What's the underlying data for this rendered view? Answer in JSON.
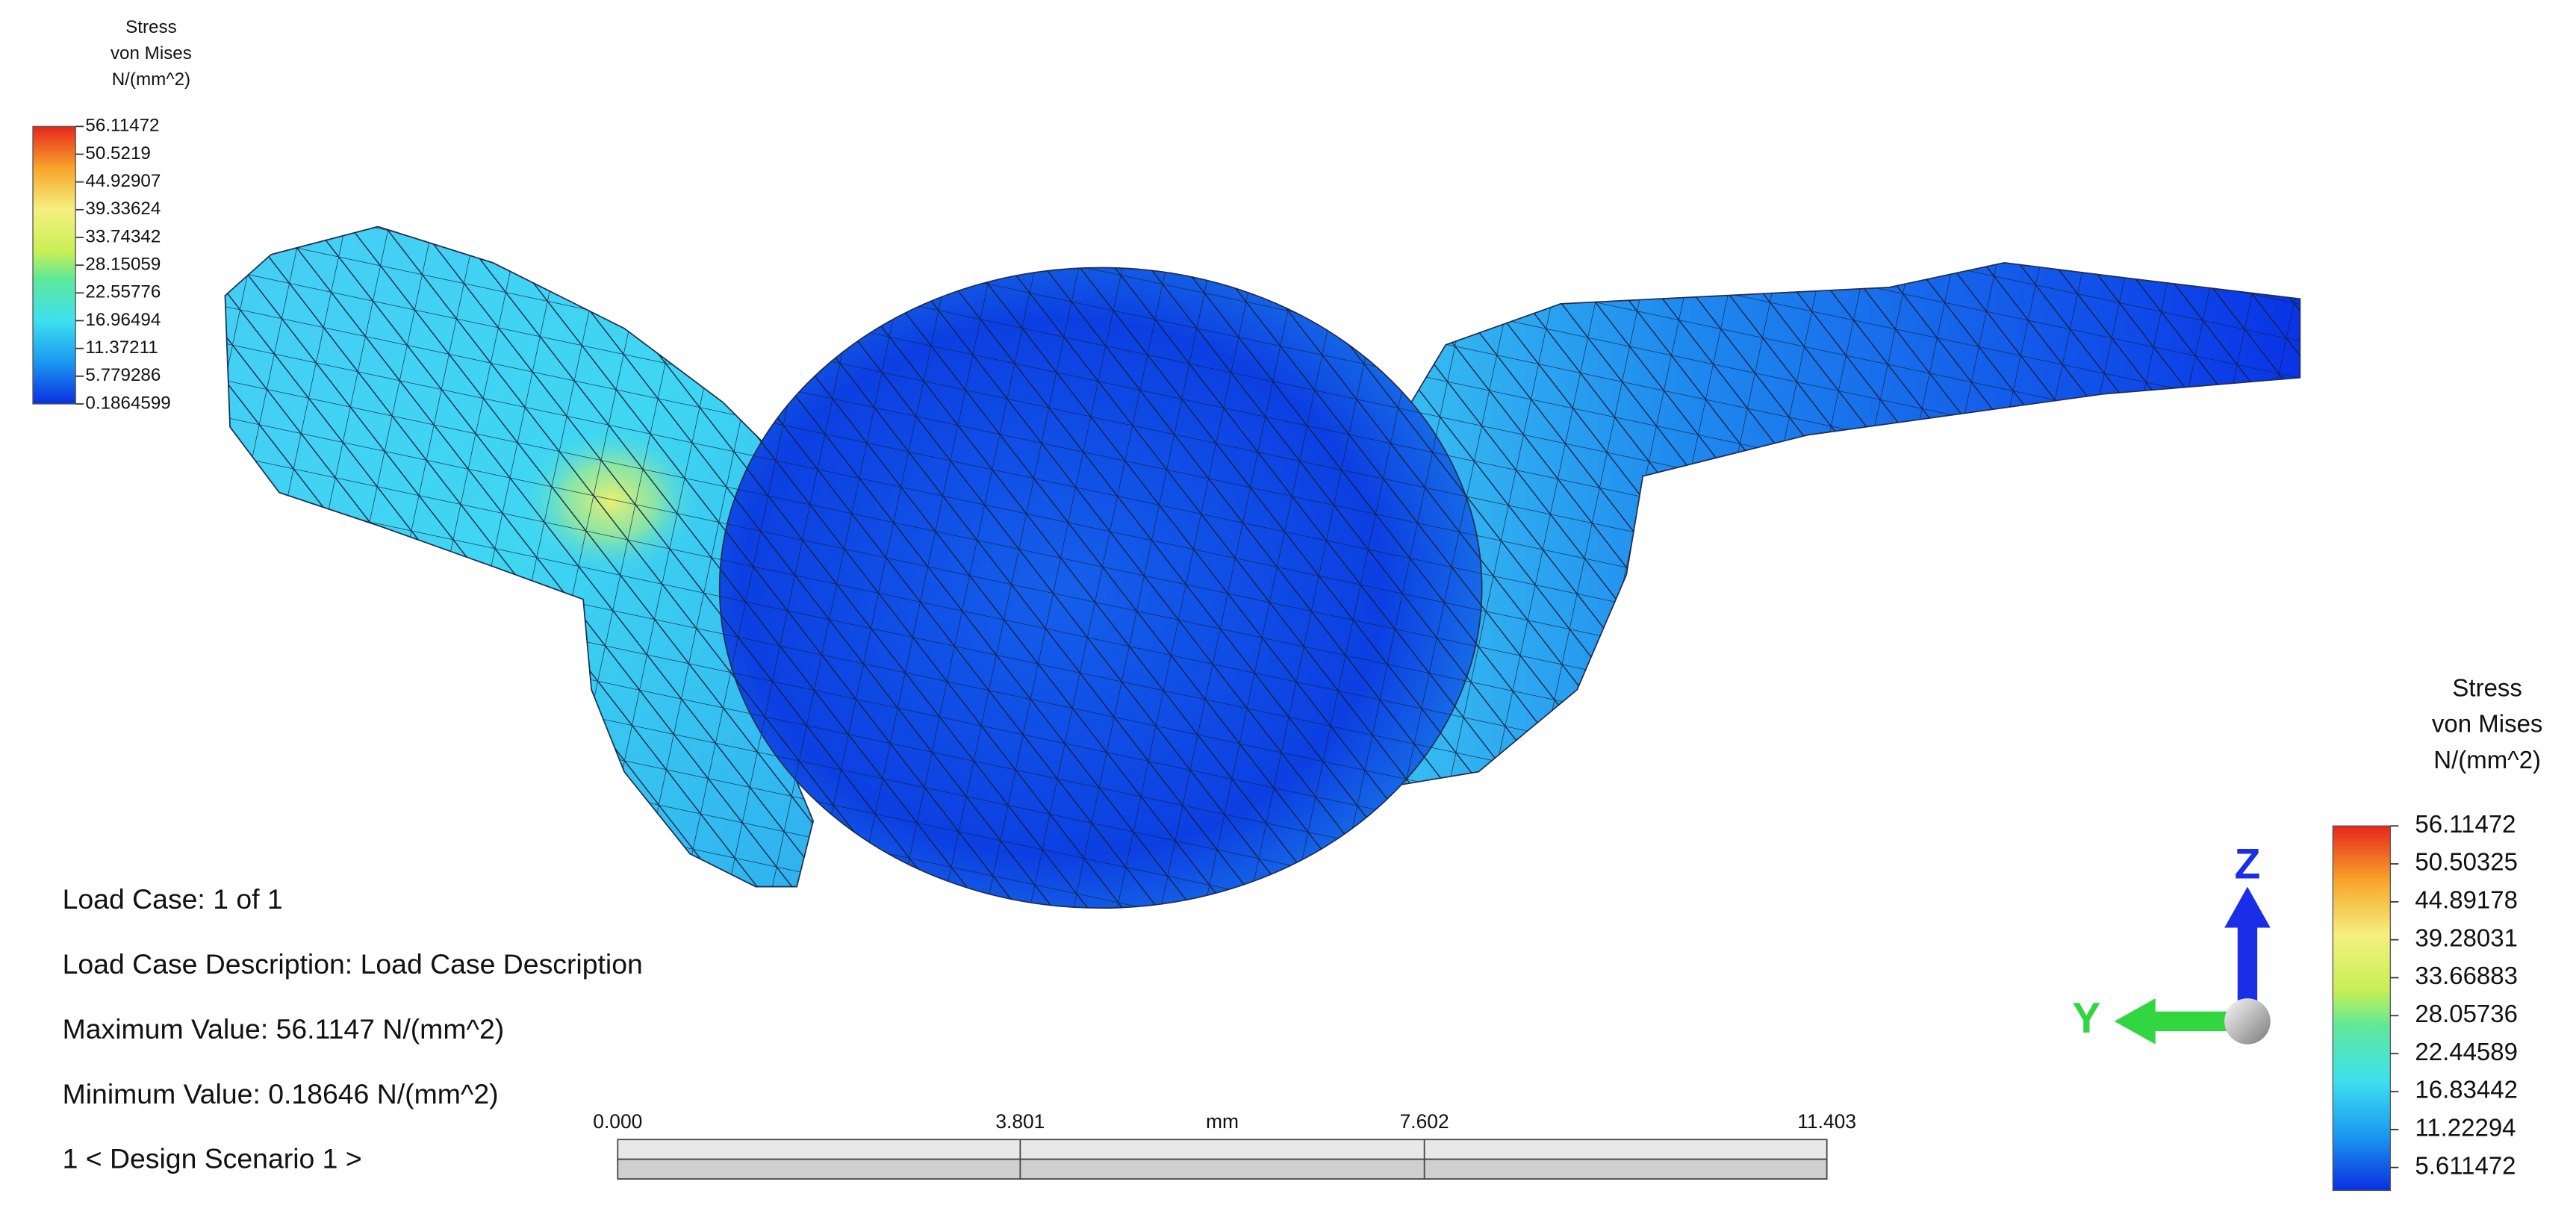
{
  "legend_left": {
    "title": [
      "Stress",
      "von Mises",
      "N/(mm^2)"
    ],
    "labels": [
      "56.11472",
      "50.5219",
      "44.92907",
      "39.33624",
      "33.74342",
      "28.15059",
      "22.55776",
      "16.96494",
      "11.37211",
      "5.779286",
      "0.1864599"
    ]
  },
  "legend_right": {
    "title": [
      "Stress",
      "von Mises",
      "N/(mm^2)"
    ],
    "labels": [
      "56.11472",
      "50.50325",
      "44.89178",
      "39.28031",
      "33.66883",
      "28.05736",
      "22.44589",
      "16.83442",
      "11.22294",
      "5.611472"
    ]
  },
  "info": [
    "Load Case:  1 of 1",
    "Load Case Description:  Load Case Description",
    "Maximum Value: 56.1147 N/(mm^2)",
    "Minimum Value: 0.18646 N/(mm^2)",
    "1 < Design Scenario 1 >"
  ],
  "scale_bar": {
    "labels": [
      "0.000",
      "3.801",
      "7.602",
      "11.403"
    ],
    "unit": "mm"
  },
  "triad": {
    "z": "Z",
    "y": "Y"
  }
}
